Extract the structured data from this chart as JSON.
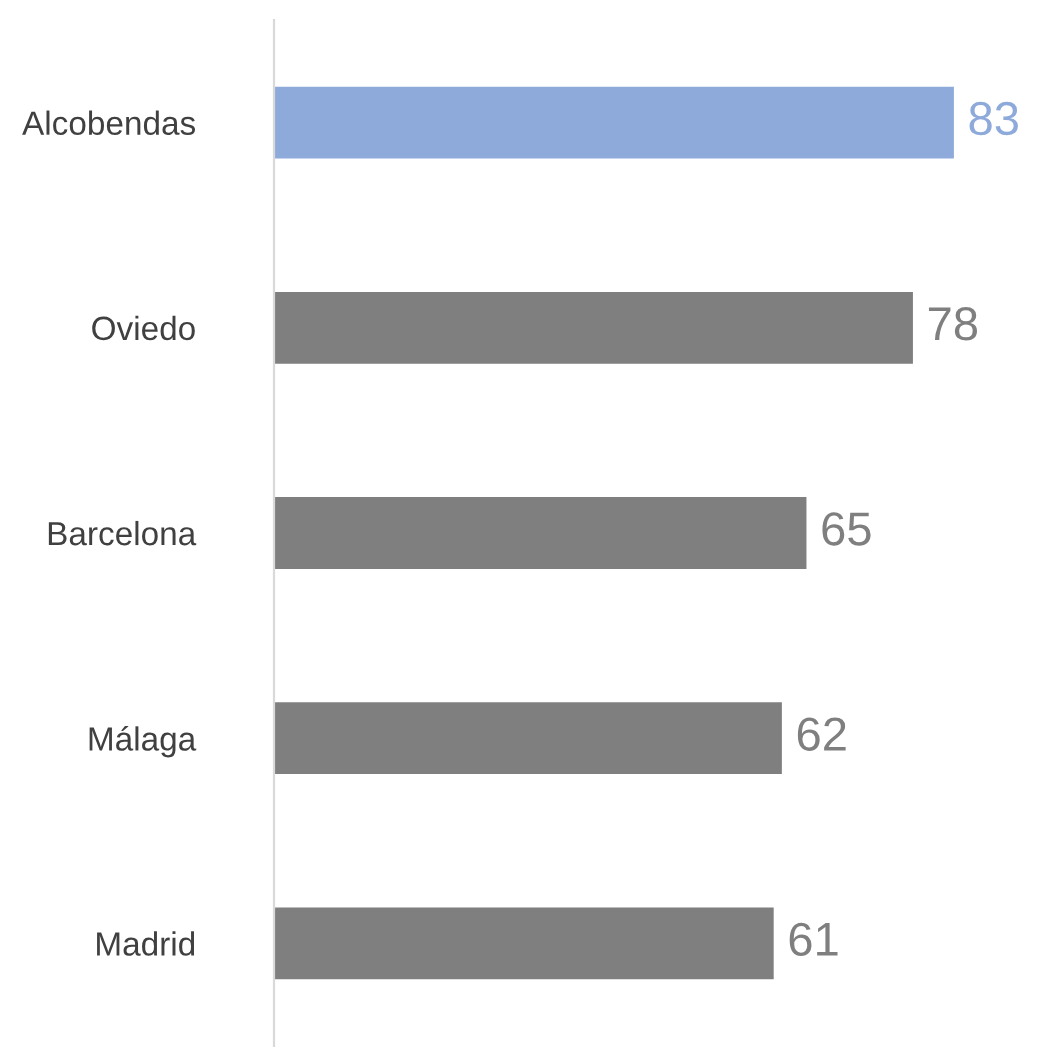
{
  "chart_data": {
    "type": "bar",
    "orientation": "horizontal",
    "categories": [
      "Alcobendas",
      "Oviedo",
      "Barcelona",
      "Málaga",
      "Madrid"
    ],
    "values": [
      83,
      78,
      65,
      62,
      61
    ],
    "colors": [
      "#8eaadb",
      "#7f7f7f",
      "#7f7f7f",
      "#7f7f7f",
      "#7f7f7f"
    ],
    "data_labels": true,
    "tick_labels": "y",
    "legend": false
  }
}
